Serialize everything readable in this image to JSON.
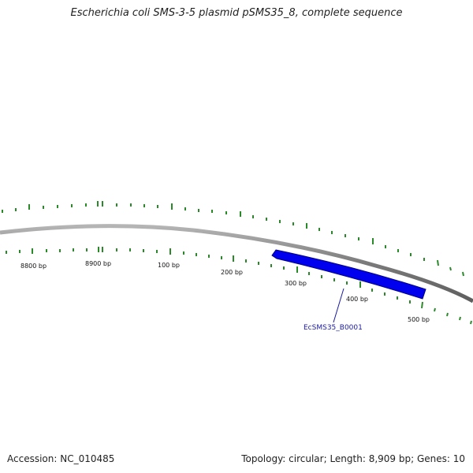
{
  "title": "Escherichia coli SMS-3-5 plasmid pSMS35_8, complete sequence",
  "footer": {
    "accession": "Accession: NC_010485",
    "summary": "Topology: circular; Length: 8,909 bp; Genes: 10"
  },
  "plasmid": {
    "length_bp": 8909,
    "topology": "circular",
    "position_labels": [
      "8800 bp",
      "8900 bp",
      "100 bp",
      "200 bp",
      "300 bp",
      "400 bp",
      "500 bp"
    ]
  },
  "genes": [
    {
      "name": "EcSMS35_B0001",
      "strand": "reverse",
      "color": "#0000ee"
    }
  ],
  "colors": {
    "backbone": "#8a8a8a",
    "ticks": "#2a8a2a",
    "gene": "#0000ee",
    "gene_label": "#1a1aa0"
  }
}
